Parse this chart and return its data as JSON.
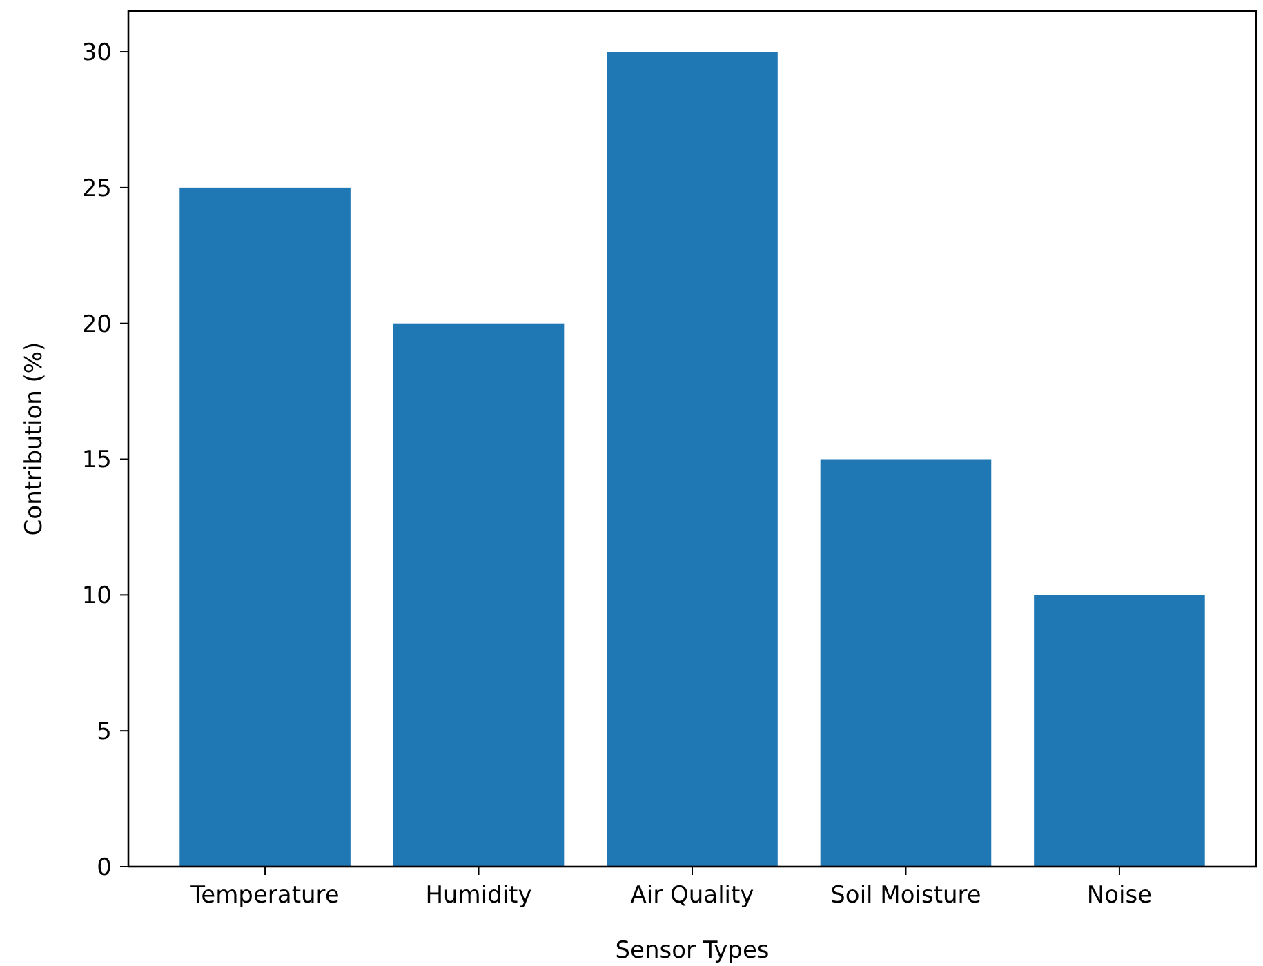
{
  "chart_data": {
    "type": "bar",
    "xlabel": "Sensor Types",
    "ylabel": "Contribution (%)",
    "categories": [
      "Temperature",
      "Humidity",
      "Air Quality",
      "Soil Moisture",
      "Noise"
    ],
    "values": [
      25,
      20,
      30,
      15,
      10
    ],
    "color": "#1f77b4",
    "ylim": [
      0,
      31.5
    ],
    "yticks": [
      0,
      5,
      10,
      15,
      20,
      25,
      30
    ],
    "grid": false
  }
}
